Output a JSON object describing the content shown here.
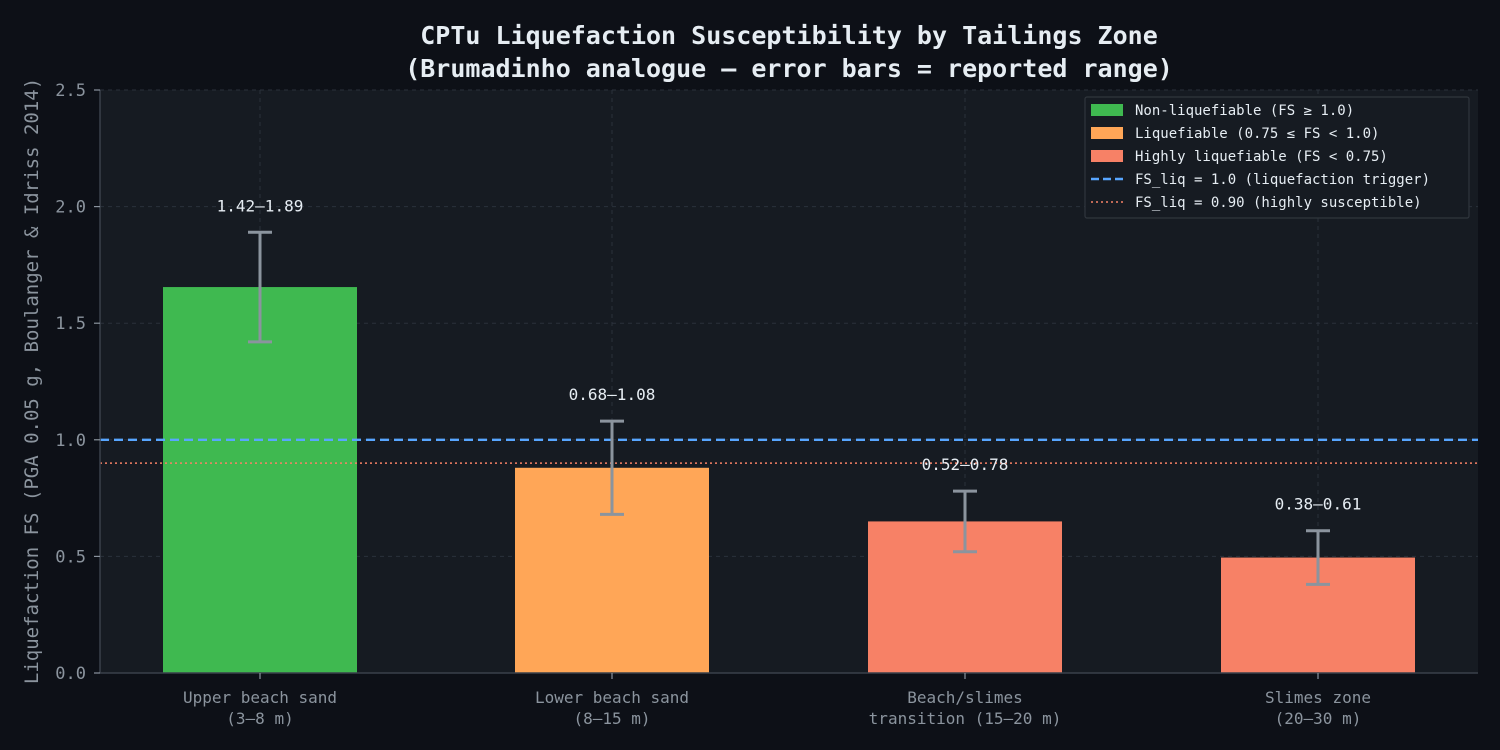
{
  "chart_data": {
    "type": "bar",
    "title_line1": "CPTu Liquefaction Susceptibility by Tailings Zone",
    "title_line2": "(Brumadinho analogue — error bars = reported range)",
    "xlabel": "",
    "ylabel": "Liquefaction FS  (PGA 0.05 g, Boulanger & Idriss 2014)",
    "ylim": [
      0,
      2.5
    ],
    "yticks": [
      0.0,
      0.5,
      1.0,
      1.5,
      2.0,
      2.5
    ],
    "ytick_labels": [
      "0.0",
      "0.5",
      "1.0",
      "1.5",
      "2.0",
      "2.5"
    ],
    "grid": true,
    "legend_position": "top-right",
    "categories": [
      [
        "Upper beach sand",
        "(3–8 m)"
      ],
      [
        "Lower beach sand",
        "(8–15 m)"
      ],
      [
        "Beach/slimes",
        "transition (15–20 m)"
      ],
      [
        "Slimes zone",
        "(20–30 m)"
      ]
    ],
    "values": [
      1.655,
      0.88,
      0.65,
      0.495
    ],
    "ranges": [
      [
        1.42,
        1.89
      ],
      [
        0.68,
        1.08
      ],
      [
        0.52,
        0.78
      ],
      [
        0.38,
        0.61
      ]
    ],
    "range_labels": [
      "1.42–1.89",
      "0.68–1.08",
      "0.52–0.78",
      "0.38–0.61"
    ],
    "bar_classes": [
      "non",
      "liq",
      "high",
      "high"
    ],
    "class_colors": {
      "non": "#3fb950",
      "liq": "#ffa657",
      "high": "#f78166"
    },
    "reference_lines": [
      {
        "value": 1.0,
        "color": "#58a6ff",
        "style": "dashed"
      },
      {
        "value": 0.9,
        "color": "#f78166",
        "style": "dotted"
      }
    ],
    "legend": [
      {
        "label": "Non-liquefiable (FS ≥ 1.0)",
        "kind": "patch",
        "color": "#3fb950"
      },
      {
        "label": "Liquefiable (0.75 ≤ FS < 1.0)",
        "kind": "patch",
        "color": "#ffa657"
      },
      {
        "label": "Highly liquefiable (FS < 0.75)",
        "kind": "patch",
        "color": "#f78166"
      },
      {
        "label": "FS_liq = 1.0 (liquefaction trigger)",
        "kind": "dashed",
        "color": "#58a6ff"
      },
      {
        "label": "FS_liq = 0.90 (highly susceptible)",
        "kind": "dotted",
        "color": "#f78166"
      }
    ],
    "colors": {
      "background": "#0d1017",
      "plot_background": "#161b22",
      "grid": "#2a313b",
      "axis": "#3a414b",
      "tick_text": "#8b949e",
      "title_text": "#e6edf3",
      "label_text": "#e6edf3",
      "errorbar": "#8b949e"
    }
  }
}
